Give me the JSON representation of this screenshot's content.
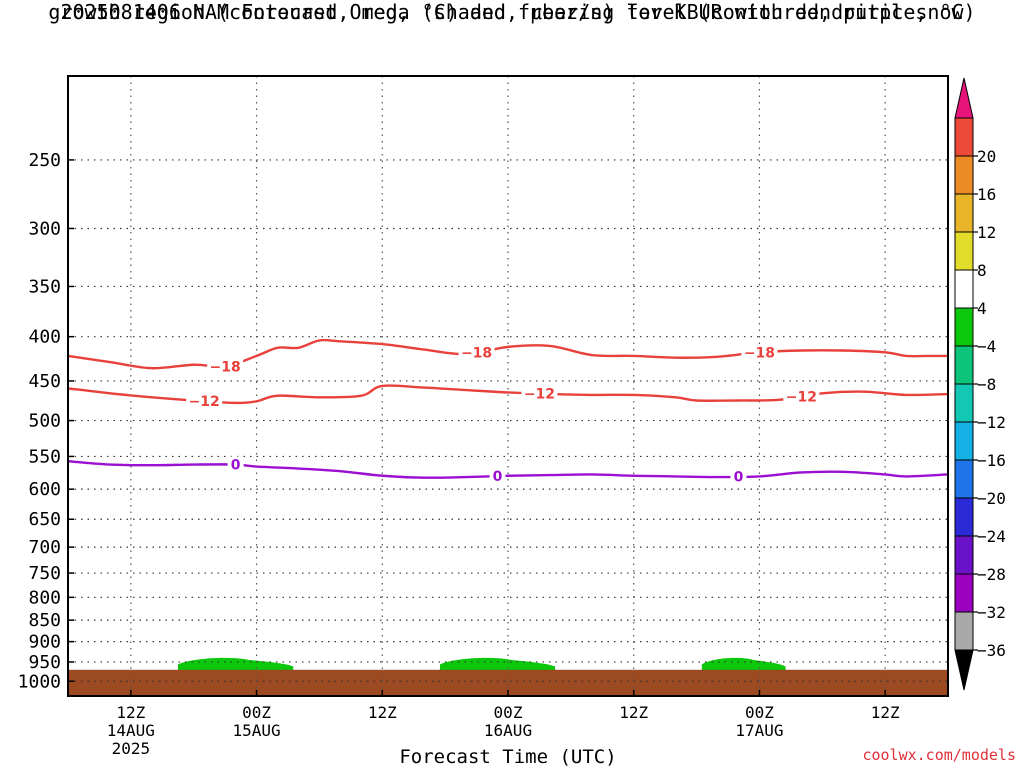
{
  "title_line1": "2025081406 NAM Forecast Omega (shaded, μbar/s) for KBUR with dendritic snow",
  "title_line2": "growth region (contoured, red, °C) and freezing level (contoured, purple, °C)",
  "credit": "coolwx.com/models",
  "chart_data": {
    "type": "time-height",
    "title": "2025081406 NAM Forecast Omega (shaded, μbar/s) for KBUR with dendritic snow growth region (contoured, red, °C) and freezing level (contoured, purple, °C)",
    "xlabel": "Forecast Time (UTC)",
    "x_range_hours": [
      0,
      84
    ],
    "x_ticks": [
      {
        "hour": 6,
        "label": "12Z",
        "sub": [
          "14AUG",
          "2025"
        ]
      },
      {
        "hour": 18,
        "label": "00Z",
        "sub": [
          "15AUG"
        ]
      },
      {
        "hour": 30,
        "label": "12Z",
        "sub": []
      },
      {
        "hour": 42,
        "label": "00Z",
        "sub": [
          "16AUG"
        ]
      },
      {
        "hour": 54,
        "label": "12Z",
        "sub": []
      },
      {
        "hour": 66,
        "label": "00Z",
        "sub": [
          "17AUG"
        ]
      },
      {
        "hour": 78,
        "label": "12Z",
        "sub": []
      }
    ],
    "y_scale": "log-pressure",
    "y_range_hpa": [
      1040,
      200
    ],
    "y_ticks": [
      250,
      300,
      350,
      400,
      450,
      500,
      550,
      600,
      650,
      700,
      750,
      800,
      850,
      900,
      950,
      1000
    ],
    "surface_pressure_hpa": 970,
    "surface_color": "#9c4a22",
    "colorbar": {
      "levels": [
        -36,
        -32,
        -28,
        -24,
        -20,
        -16,
        -12,
        -8,
        -4,
        4,
        8,
        12,
        16,
        20
      ],
      "colors": [
        "#a9a9a9",
        "#9b00c0",
        "#6a12c8",
        "#2a2ad8",
        "#1e74e8",
        "#15b2e6",
        "#12c8b4",
        "#0cc47a",
        "#0cc80c",
        "#ffffff",
        "#e2dc2a",
        "#e8b428",
        "#ec8a24",
        "#ee4a3a"
      ],
      "under_color": "#000000",
      "over_color": "#e8147a"
    },
    "omega_regions": [
      {
        "value_class": "-8 to -4",
        "color": "#0cc80c",
        "x_hours": [
          10.5,
          21.5
        ],
        "top_hpa": 940
      },
      {
        "value_class": "-8 to -4",
        "color": "#0cc80c",
        "x_hours": [
          35.5,
          46.5
        ],
        "top_hpa": 940
      },
      {
        "value_class": "-8 to -4",
        "color": "#0cc80c",
        "x_hours": [
          60.5,
          68.5
        ],
        "top_hpa": 940
      }
    ],
    "contours": [
      {
        "name": "-18 °C",
        "label": "-18",
        "color": "#e8413c",
        "x_hours": [
          0,
          4,
          8,
          12,
          15,
          18,
          20,
          22,
          24,
          26,
          30,
          34,
          38,
          42,
          46,
          50,
          54,
          58,
          62,
          66,
          70,
          74,
          78,
          80,
          82,
          84
        ],
        "p_hpa": [
          421,
          428,
          435,
          431,
          433,
          421,
          412,
          412,
          404,
          405,
          408,
          414,
          419,
          411,
          410,
          420,
          421,
          423,
          422,
          417,
          415,
          415,
          417,
          421,
          421,
          421
        ],
        "label_hours": [
          15,
          39,
          66
        ]
      },
      {
        "name": "-12 °C",
        "label": "-12",
        "color": "#e8413c",
        "x_hours": [
          0,
          4,
          8,
          12,
          16,
          18,
          20,
          24,
          28,
          30,
          34,
          38,
          42,
          46,
          50,
          54,
          58,
          60,
          64,
          68,
          72,
          76,
          80,
          84
        ],
        "p_hpa": [
          459,
          465,
          470,
          474,
          477,
          475,
          468,
          470,
          468,
          456,
          458,
          461,
          464,
          466,
          467,
          467,
          470,
          474,
          474,
          473,
          465,
          463,
          467,
          466
        ],
        "label_hours": [
          13,
          45,
          70
        ]
      },
      {
        "name": "0 °C",
        "label": "0",
        "color": "#9b0fd0",
        "x_hours": [
          0,
          4,
          8,
          12,
          16,
          18,
          22,
          26,
          30,
          34,
          38,
          42,
          46,
          50,
          54,
          58,
          62,
          66,
          70,
          74,
          78,
          80,
          84
        ],
        "p_hpa": [
          557,
          562,
          563,
          562,
          562,
          565,
          568,
          572,
          579,
          582,
          581,
          579,
          578,
          577,
          579,
          580,
          581,
          580,
          574,
          573,
          577,
          580,
          577
        ],
        "label_hours": [
          16,
          41,
          64
        ]
      }
    ]
  }
}
